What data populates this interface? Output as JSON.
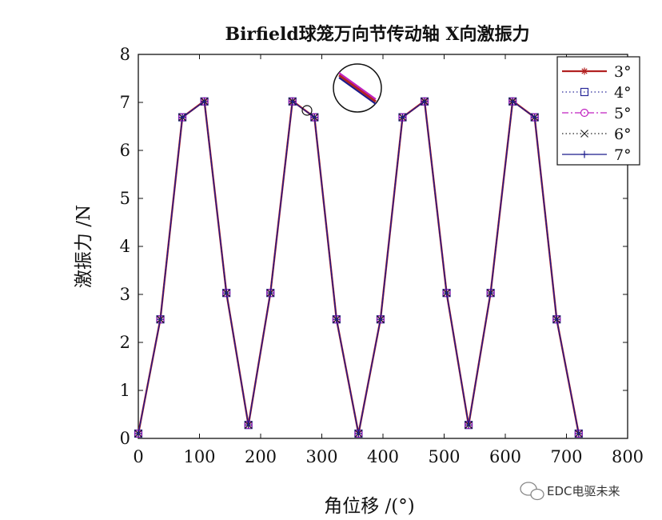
{
  "chart_data": {
    "type": "line",
    "title": "Birfield球笼万向节传动轴 X向激振力",
    "xlabel": "角位移 /(°)",
    "ylabel": "激振力 /N",
    "xlim": [
      0,
      800
    ],
    "ylim": [
      0,
      8
    ],
    "xticks": [
      0,
      100,
      200,
      300,
      400,
      500,
      600,
      700,
      800
    ],
    "yticks": [
      0,
      1,
      2,
      3,
      4,
      5,
      6,
      7,
      8
    ],
    "grid": false,
    "legend_position": "top-right",
    "x": [
      0,
      36,
      72,
      108,
      144,
      180,
      216,
      252,
      288,
      324,
      360,
      396,
      432,
      468,
      504,
      540,
      576,
      612,
      648,
      684,
      720
    ],
    "series": [
      {
        "name": "3°",
        "color": "#b22222",
        "style": "solid",
        "marker": "star",
        "values": [
          0.1,
          2.48,
          6.69,
          7.03,
          3.03,
          0.28,
          3.03,
          7.03,
          6.69,
          2.48,
          0.1,
          2.48,
          6.69,
          7.03,
          3.03,
          0.28,
          3.03,
          7.03,
          6.69,
          2.48,
          0.1
        ]
      },
      {
        "name": "4°",
        "color": "#2a2a9a",
        "style": "dotted",
        "marker": "square",
        "values": [
          0.1,
          2.48,
          6.69,
          7.02,
          3.03,
          0.28,
          3.03,
          7.02,
          6.69,
          2.48,
          0.1,
          2.48,
          6.69,
          7.02,
          3.03,
          0.28,
          3.03,
          7.02,
          6.69,
          2.48,
          0.1
        ]
      },
      {
        "name": "5°",
        "color": "#c020c0",
        "style": "dashdot",
        "marker": "circle",
        "values": [
          0.1,
          2.48,
          6.69,
          7.02,
          3.03,
          0.28,
          3.03,
          7.02,
          6.69,
          2.48,
          0.1,
          2.48,
          6.69,
          7.02,
          3.03,
          0.28,
          3.03,
          7.02,
          6.69,
          2.48,
          0.1
        ]
      },
      {
        "name": "6°",
        "color": "#222222",
        "style": "dotted",
        "marker": "x",
        "values": [
          0.1,
          2.48,
          6.69,
          7.02,
          3.03,
          0.28,
          3.03,
          7.02,
          6.69,
          2.48,
          0.1,
          2.48,
          6.69,
          7.02,
          3.03,
          0.28,
          3.03,
          7.02,
          6.69,
          2.48,
          0.1
        ]
      },
      {
        "name": "7°",
        "color": "#1a1a8c",
        "style": "solid",
        "marker": "plus",
        "values": [
          0.1,
          2.48,
          6.69,
          7.02,
          3.03,
          0.28,
          3.03,
          7.02,
          6.69,
          2.48,
          0.1,
          2.48,
          6.69,
          7.02,
          3.03,
          0.28,
          3.03,
          7.02,
          6.69,
          2.48,
          0.1
        ]
      }
    ],
    "annotations": [
      "magnified view of overlapping lines"
    ]
  },
  "watermark": {
    "icon": "wechat-icon",
    "text": "EDC电驱未来"
  }
}
